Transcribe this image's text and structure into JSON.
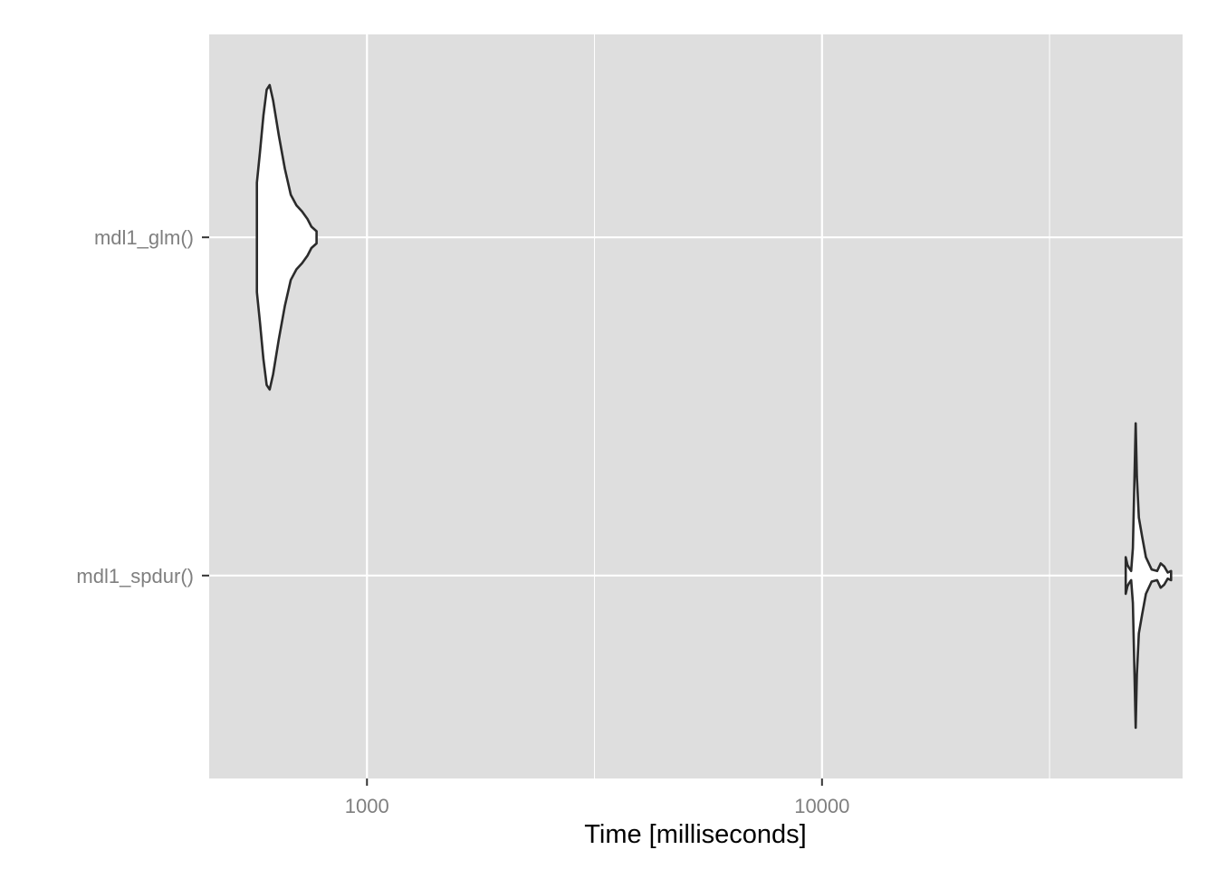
{
  "chart_data": {
    "type": "violin",
    "orientation": "horizontal",
    "title": "",
    "xlabel": "Time [milliseconds]",
    "ylabel": "",
    "x_scale": "log10",
    "xlim": [
      450,
      62000
    ],
    "x_ticks": [
      1000,
      10000
    ],
    "x_tick_labels": [
      "1000",
      "10000"
    ],
    "categories": [
      "mdl1_glm()",
      "mdl1_spdur()"
    ],
    "grid": true,
    "legend": "none",
    "colors": {
      "panel_background": "#dedede",
      "grid_line": "#ffffff",
      "violin_fill": "#ffffff",
      "violin_stroke": "#2b2b2b",
      "tick_label": "#7f7f7f"
    },
    "series": [
      {
        "category": "mdl1_glm()",
        "min": 573,
        "max": 775,
        "density": [
          [
            573,
            0.36
          ],
          [
            582,
            0.56
          ],
          [
            592,
            0.8
          ],
          [
            602,
            0.97
          ],
          [
            611,
            1.0
          ],
          [
            622,
            0.9
          ],
          [
            640,
            0.67
          ],
          [
            660,
            0.45
          ],
          [
            680,
            0.28
          ],
          [
            700,
            0.21
          ],
          [
            720,
            0.17
          ],
          [
            740,
            0.12
          ],
          [
            755,
            0.07
          ],
          [
            775,
            0.04
          ]
        ]
      },
      {
        "category": "mdl1_spdur()",
        "min": 46500,
        "max": 58500,
        "density": [
          [
            46500,
            0.12
          ],
          [
            46900,
            0.07
          ],
          [
            47300,
            0.05
          ],
          [
            47800,
            0.03
          ],
          [
            48200,
            0.18
          ],
          [
            48600,
            0.65
          ],
          [
            48900,
            1.0
          ],
          [
            49200,
            0.65
          ],
          [
            49700,
            0.38
          ],
          [
            50500,
            0.26
          ],
          [
            51500,
            0.12
          ],
          [
            53000,
            0.04
          ],
          [
            54500,
            0.03
          ],
          [
            55500,
            0.08
          ],
          [
            56500,
            0.06
          ],
          [
            57500,
            0.02
          ],
          [
            58500,
            0.03
          ]
        ]
      }
    ]
  }
}
